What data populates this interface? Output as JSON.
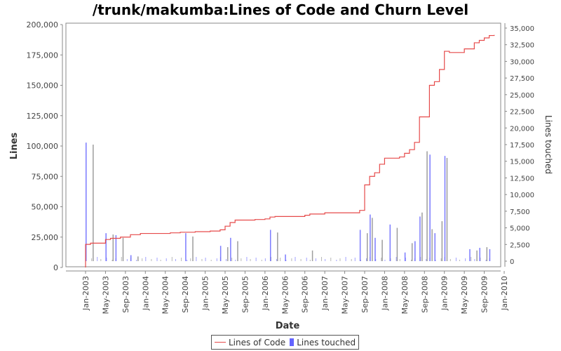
{
  "chart_data": {
    "type": "line+bar",
    "title": "/trunk/makumba:Lines of Code and Churn Level",
    "xlabel": "Date",
    "ylabel": "Lines",
    "ylabel_right": "Lines touched",
    "ylim": [
      0,
      200000
    ],
    "ylim_right": [
      0,
      35000
    ],
    "y_ticks": [
      "0",
      "25,000",
      "50,000",
      "75,000",
      "100,000",
      "125,000",
      "150,000",
      "175,000",
      "200,000"
    ],
    "y_ticks_right": [
      "0",
      "2,500",
      "5,000",
      "7,500",
      "10,000",
      "12,500",
      "15,000",
      "17,500",
      "20,000",
      "22,500",
      "25,000",
      "27,500",
      "30,000",
      "32,500",
      "35,000"
    ],
    "x_ticks": [
      "Jan-2003",
      "May-2003",
      "Sep-2003",
      "Jan-2004",
      "May-2004",
      "Sep-2004",
      "Jan-2005",
      "May-2005",
      "Sep-2005",
      "Jan-2006",
      "May-2006",
      "Sep-2006",
      "Jan-2007",
      "May-2007",
      "Sep-2007",
      "Jan-2008",
      "May-2008",
      "Sep-2008",
      "Jan-2009",
      "May-2009",
      "Sep-2009",
      "Jan-2010"
    ],
    "legend": [
      "Lines of Code",
      "Lines touched"
    ],
    "legend_position": "bottom",
    "grid": false,
    "series": [
      {
        "name": "Lines of Code",
        "type": "step-line",
        "color": "#e64a4a",
        "points": [
          [
            "2003-01",
            0
          ],
          [
            "2003-01",
            19000
          ],
          [
            "2003-02",
            20000
          ],
          [
            "2003-05",
            20000
          ],
          [
            "2003-05",
            23000
          ],
          [
            "2003-06",
            24000
          ],
          [
            "2003-08",
            25000
          ],
          [
            "2003-10",
            27000
          ],
          [
            "2003-12",
            28000
          ],
          [
            "2004-06",
            28500
          ],
          [
            "2004-08",
            29000
          ],
          [
            "2004-11",
            29500
          ],
          [
            "2005-02",
            30000
          ],
          [
            "2005-04",
            31000
          ],
          [
            "2005-05",
            34000
          ],
          [
            "2005-06",
            37000
          ],
          [
            "2005-07",
            39000
          ],
          [
            "2005-11",
            39500
          ],
          [
            "2006-01",
            40000
          ],
          [
            "2006-02",
            41500
          ],
          [
            "2006-03",
            42000
          ],
          [
            "2006-09",
            43000
          ],
          [
            "2006-10",
            44000
          ],
          [
            "2007-01",
            45000
          ],
          [
            "2007-07",
            45000
          ],
          [
            "2007-08",
            47000
          ],
          [
            "2007-09",
            49000
          ],
          [
            "2007-09",
            55000
          ],
          [
            "2007-09",
            68000
          ],
          [
            "2007-10",
            72000
          ],
          [
            "2007-10",
            75000
          ],
          [
            "2007-11",
            78000
          ],
          [
            "2007-12",
            85000
          ],
          [
            "2008-01",
            90000
          ],
          [
            "2008-04",
            91000
          ],
          [
            "2008-05",
            94000
          ],
          [
            "2008-06",
            97000
          ],
          [
            "2008-07",
            103000
          ],
          [
            "2008-08",
            107000
          ],
          [
            "2008-08",
            120000
          ],
          [
            "2008-08",
            124000
          ],
          [
            "2008-09",
            124000
          ],
          [
            "2008-10",
            146000
          ],
          [
            "2008-10",
            150000
          ],
          [
            "2008-11",
            153000
          ],
          [
            "2008-12",
            160000
          ],
          [
            "2008-12",
            163000
          ],
          [
            "2009-01",
            178000
          ],
          [
            "2009-02",
            177000
          ],
          [
            "2009-05",
            177000
          ],
          [
            "2009-05",
            180000
          ],
          [
            "2009-07",
            183000
          ],
          [
            "2009-07",
            185000
          ],
          [
            "2009-08",
            187000
          ],
          [
            "2009-09",
            189000
          ],
          [
            "2009-10",
            191000
          ],
          [
            "2009-11",
            191500
          ]
        ]
      },
      {
        "name": "Lines touched",
        "type": "bar",
        "color": "#6464ff",
        "axis": "right",
        "points": [
          [
            "2003-01",
            17800
          ],
          [
            "2003-02",
            17500
          ],
          [
            "2003-05",
            4200
          ],
          [
            "2003-06",
            4000
          ],
          [
            "2003-07",
            3900
          ],
          [
            "2003-08",
            3500
          ],
          [
            "2003-10",
            900
          ],
          [
            "2003-11",
            700
          ],
          [
            "2004-09",
            4200
          ],
          [
            "2004-10",
            3700
          ],
          [
            "2005-04",
            2300
          ],
          [
            "2005-05",
            2100
          ],
          [
            "2005-06",
            3500
          ],
          [
            "2005-07",
            3000
          ],
          [
            "2006-02",
            4700
          ],
          [
            "2006-03",
            4300
          ],
          [
            "2006-05",
            1000
          ],
          [
            "2006-10",
            1600
          ],
          [
            "2007-08",
            4700
          ],
          [
            "2007-09",
            4200
          ],
          [
            "2007-10",
            7000
          ],
          [
            "2007-10",
            6500
          ],
          [
            "2007-11",
            3500
          ],
          [
            "2007-12",
            3200
          ],
          [
            "2008-02",
            5500
          ],
          [
            "2008-03",
            5000
          ],
          [
            "2008-05",
            1300
          ],
          [
            "2008-06",
            2700
          ],
          [
            "2008-07",
            3000
          ],
          [
            "2008-08",
            7300
          ],
          [
            "2008-08",
            6700
          ],
          [
            "2008-09",
            16500
          ],
          [
            "2008-10",
            16000
          ],
          [
            "2008-10",
            4800
          ],
          [
            "2008-11",
            4200
          ],
          [
            "2008-12",
            6000
          ],
          [
            "2009-01",
            15800
          ],
          [
            "2009-01",
            15500
          ],
          [
            "2009-06",
            1800
          ],
          [
            "2009-07",
            1600
          ],
          [
            "2009-08",
            2000
          ],
          [
            "2009-09",
            2100
          ],
          [
            "2009-10",
            1800
          ]
        ]
      }
    ]
  }
}
